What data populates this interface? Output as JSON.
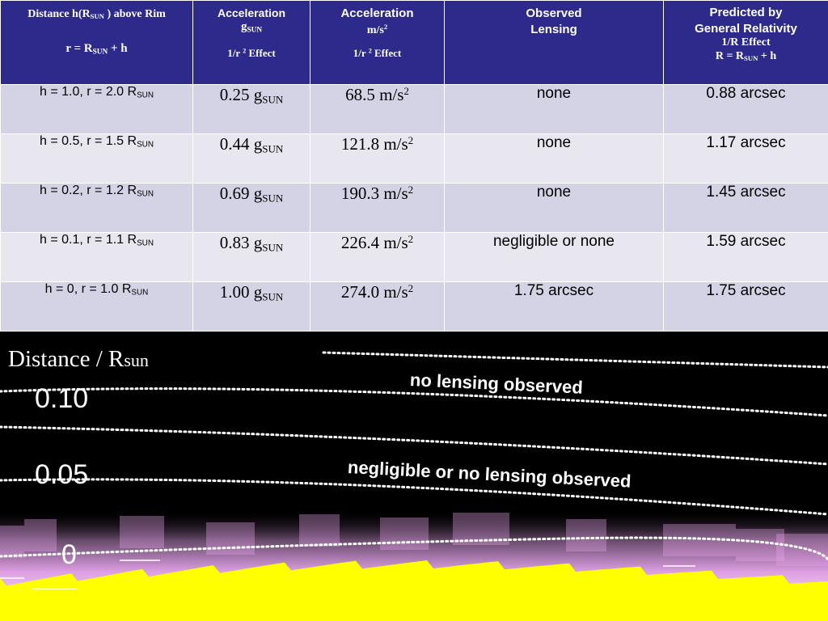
{
  "table": {
    "headers": {
      "distance": {
        "line1_pre": "Distance h(R",
        "line1_sub": "SUN",
        "line1_post": " ) above  Rim",
        "line2_pre": "r = R",
        "line2_sub": "SUN",
        "line2_post": " + h"
      },
      "accel_g": {
        "line1": "Acceleration",
        "line2": "g",
        "line2_sub": "SUN",
        "line3_pre": "1/r ",
        "line3_sup": "2",
        "line3_post": " Effect"
      },
      "accel_ms": {
        "line1": "Acceleration",
        "line2_pre": "m/s",
        "line2_sup": "2",
        "line3_pre": "1/r ",
        "line3_sup": "2",
        "line3_post": " Effect"
      },
      "observed": {
        "line1": "Observed",
        "line2": "Lensing"
      },
      "predicted": {
        "line1": "Predicted by",
        "line2": "General Relativity",
        "line3": "1/R  Effect",
        "line4_pre": "R = R",
        "line4_sub": "SUN",
        "line4_post": " + h"
      }
    },
    "rows": [
      {
        "dist": "h = 1.0, r = 2.0 R",
        "dist_sub": "SUN",
        "g": "0.25 g",
        "g_sub": "SUN",
        "ms": "68.5 m/s",
        "ms_sup": "2",
        "observed": "none",
        "predicted": "0.88 arcsec"
      },
      {
        "dist": "h = 0.5, r = 1.5 R",
        "dist_sub": "SUN",
        "g": "0.44 g",
        "g_sub": "SUN",
        "ms": "121.8 m/s",
        "ms_sup": "2",
        "observed": "none",
        "predicted": "1.17 arcsec"
      },
      {
        "dist": "h = 0.2, r = 1.2 R",
        "dist_sub": "SUN",
        "g": "0.69 g",
        "g_sub": "SUN",
        "ms": "190.3 m/s",
        "ms_sup": "2",
        "observed": "none",
        "predicted": "1.45 arcsec"
      },
      {
        "dist": "h = 0.1, r = 1.1 R",
        "dist_sub": "SUN",
        "g": "0.83 g",
        "g_sub": "SUN",
        "ms": "226.4 m/s",
        "ms_sup": "2",
        "observed": "negligible or none",
        "predicted": "1.59 arcsec"
      },
      {
        "dist": "h = 0,  r = 1.0 R",
        "dist_sub": "SUN",
        "g": "1.00 g",
        "g_sub": "SUN",
        "ms": "274.0 m/s",
        "ms_sup": "2",
        "observed": "1.75 arcsec",
        "predicted": "1.75 arcsec"
      }
    ]
  },
  "panel": {
    "axis_label": "Distance / R",
    "axis_label_small": "sun",
    "ticks": [
      "0.10",
      "0.05",
      "0"
    ],
    "note_top": "no lensing observed",
    "note_bottom": "negligible or no lensing observed",
    "colors": {
      "corona": "#e8a6ee",
      "sun": "#ffff00",
      "background": "#000000",
      "header": "#2d2a8c"
    }
  }
}
